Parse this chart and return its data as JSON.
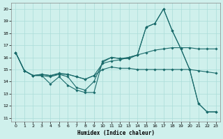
{
  "xlabel": "Humidex (Indice chaleur)",
  "background_color": "#cff0ec",
  "grid_color": "#aaddd8",
  "line_color": "#1a6b6b",
  "xlim": [
    -0.5,
    23.5
  ],
  "ylim": [
    10.7,
    20.5
  ],
  "yticks": [
    11,
    12,
    13,
    14,
    15,
    16,
    17,
    18,
    19,
    20
  ],
  "xticks": [
    0,
    1,
    2,
    3,
    4,
    5,
    6,
    7,
    8,
    9,
    10,
    11,
    12,
    13,
    14,
    15,
    16,
    17,
    18,
    19,
    20,
    21,
    22,
    23
  ],
  "lines": [
    [
      16.4,
      14.9,
      14.5,
      14.5,
      13.8,
      14.4,
      13.7,
      13.3,
      13.1,
      13.1,
      15.7,
      16.0,
      15.9,
      15.9,
      16.2,
      18.5,
      18.8,
      20.0,
      18.2,
      16.7,
      15.0,
      12.2,
      11.5,
      11.5
    ],
    [
      16.4,
      14.9,
      14.5,
      14.5,
      14.4,
      14.6,
      14.4,
      13.5,
      13.3,
      14.0,
      15.6,
      16.0,
      15.9,
      16.0,
      16.2,
      18.5,
      18.8,
      20.0,
      18.2,
      16.7,
      15.0,
      12.2,
      11.5,
      11.5
    ],
    [
      16.4,
      14.9,
      14.5,
      14.6,
      14.5,
      14.6,
      14.6,
      14.4,
      14.2,
      14.5,
      15.5,
      15.7,
      15.8,
      16.0,
      16.2,
      16.4,
      16.6,
      16.7,
      16.8,
      16.8,
      16.8,
      16.7,
      16.7,
      16.7
    ],
    [
      16.4,
      14.9,
      14.5,
      14.6,
      14.5,
      14.7,
      14.6,
      14.4,
      14.2,
      14.5,
      15.0,
      15.2,
      15.1,
      15.1,
      15.0,
      15.0,
      15.0,
      15.0,
      15.0,
      15.0,
      15.0,
      14.9,
      14.8,
      14.7
    ]
  ]
}
